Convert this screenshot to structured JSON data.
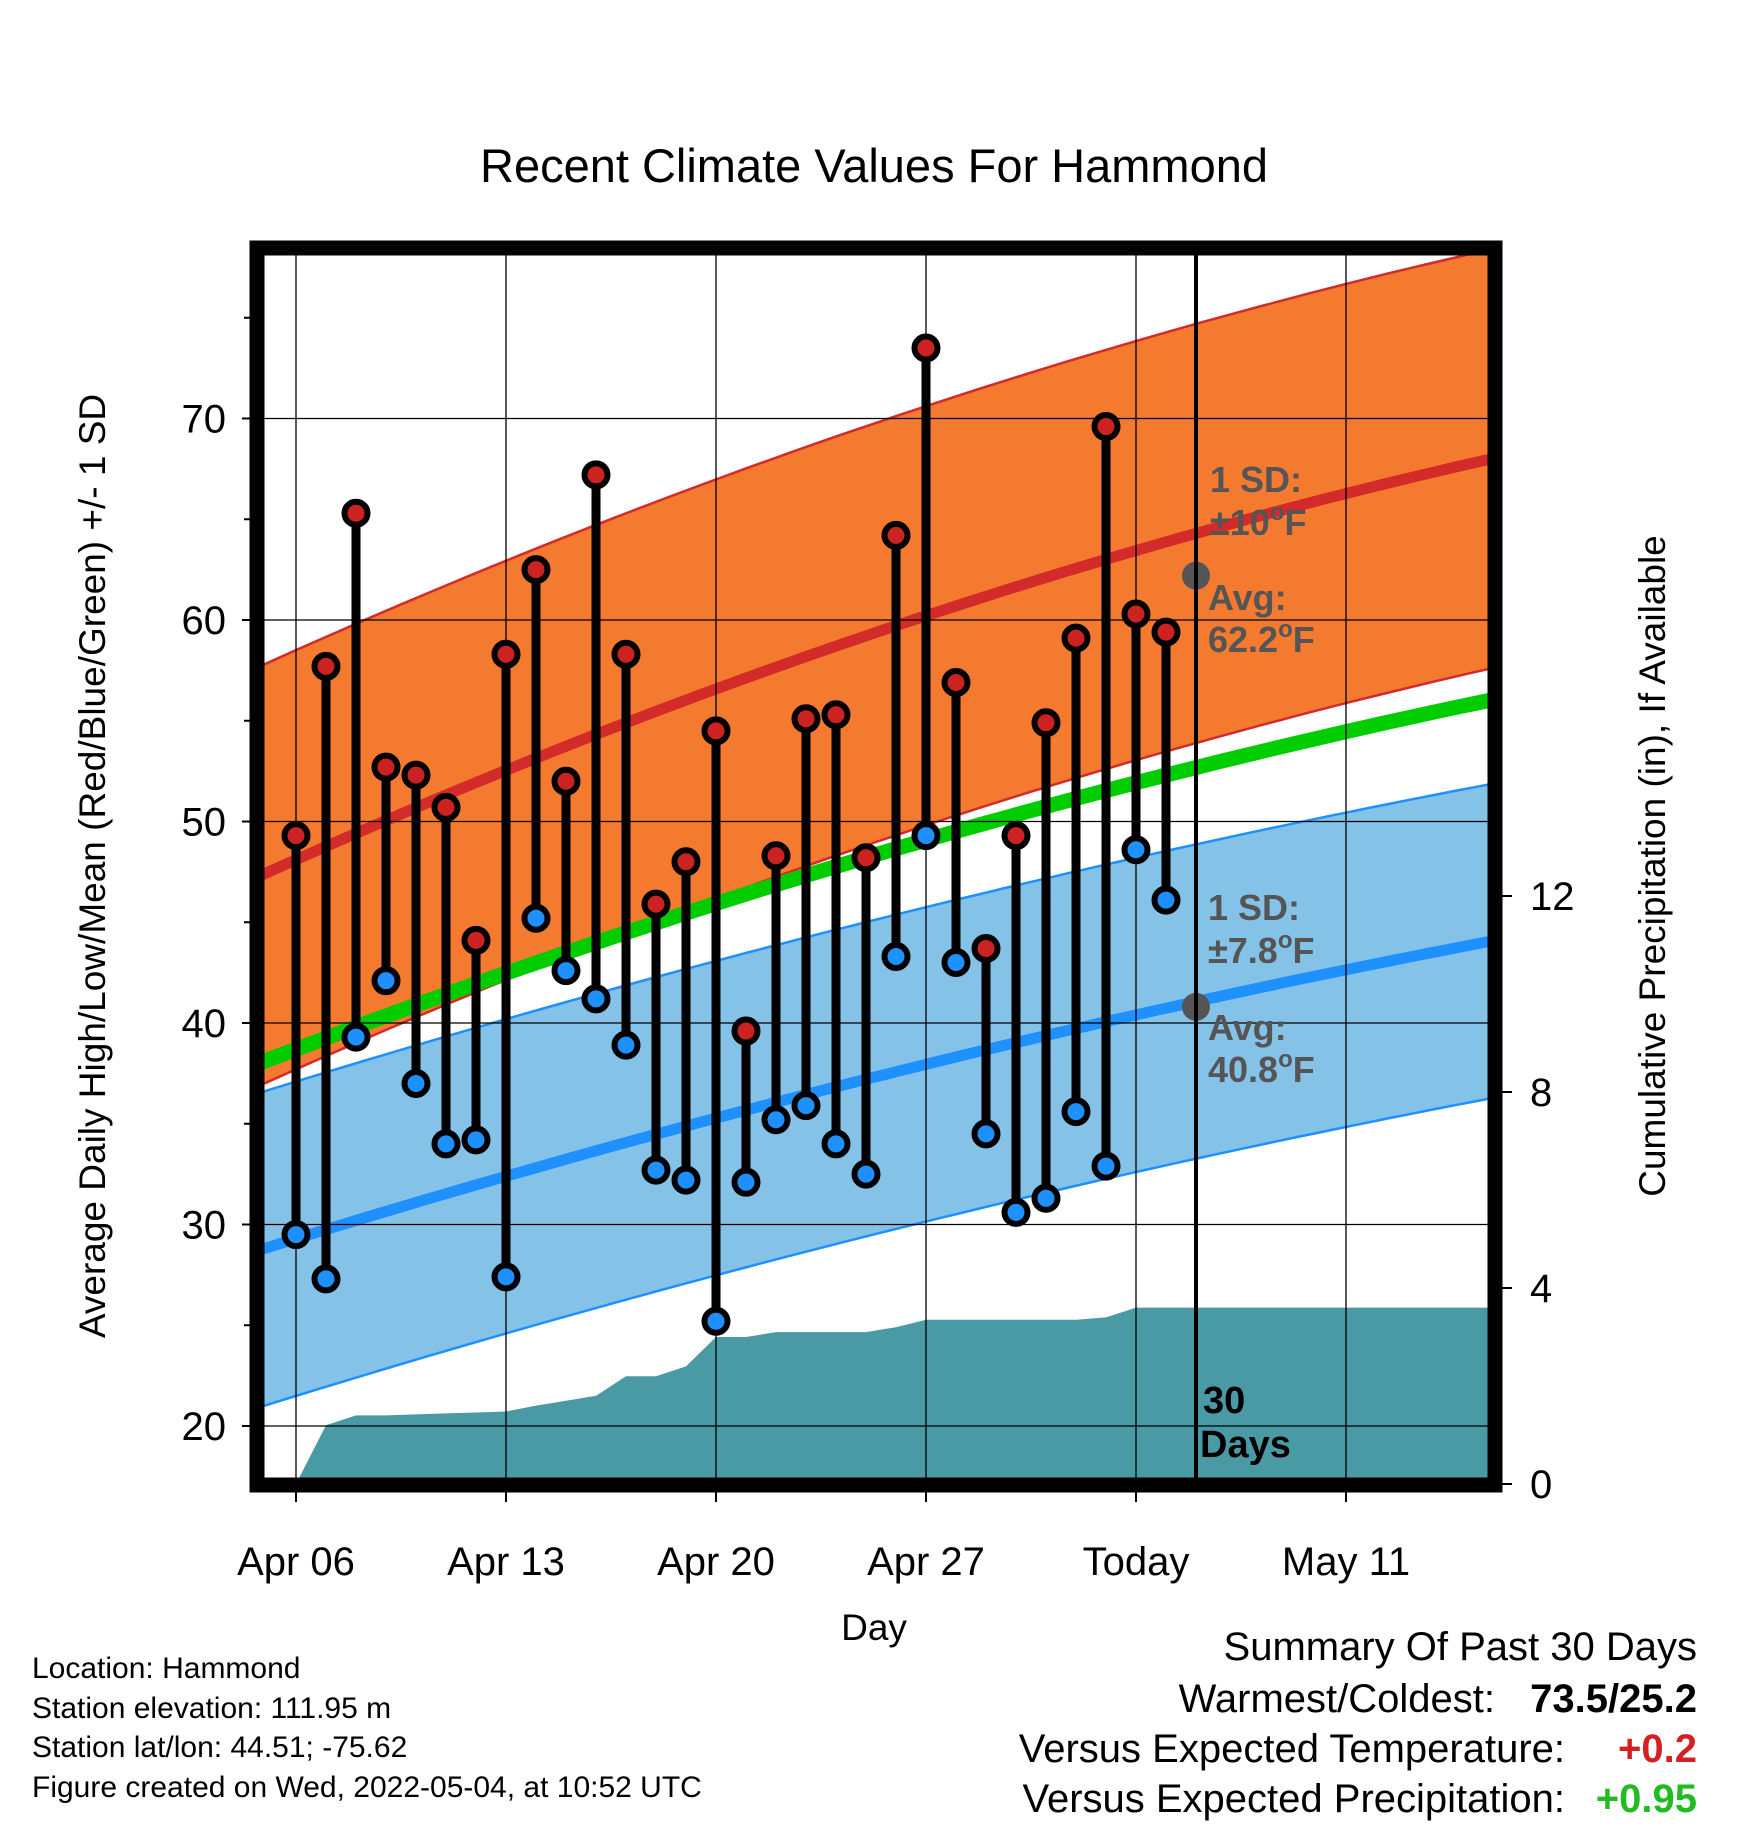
{
  "chart_data": {
    "type": "line",
    "title": "Recent Climate Values For Hammond",
    "xlabel": "Day",
    "ylabel": "Average Daily High/Low/Mean (Red/Blue/Green) +/- 1 SD",
    "ylabel_right": "Cumulative Precipitation (in), If Available",
    "x_ticks": [
      "Apr 06",
      "Apr 13",
      "Apr 20",
      "Apr 27",
      "Today",
      "May 11"
    ],
    "y_ticks": [
      20,
      30,
      40,
      50,
      60,
      70
    ],
    "y_right_ticks": [
      0,
      4,
      8,
      12
    ],
    "today_label": "30 Days",
    "highs": [
      49.3,
      57.7,
      65.3,
      52.7,
      52.3,
      50.7,
      44.1,
      58.3,
      62.5,
      52.0,
      67.2,
      58.3,
      45.9,
      48.0,
      54.5,
      39.6,
      48.3,
      55.1,
      55.3,
      48.2,
      64.2,
      73.5,
      56.9,
      43.7,
      49.3,
      54.9,
      59.1,
      69.6,
      60.3,
      59.4
    ],
    "lows": [
      29.5,
      27.3,
      39.3,
      42.1,
      37.0,
      34.0,
      34.2,
      27.4,
      45.2,
      42.6,
      41.2,
      38.9,
      32.7,
      32.2,
      25.2,
      32.1,
      35.2,
      35.9,
      34.0,
      32.5,
      43.3,
      49.3,
      43.0,
      34.5,
      30.6,
      31.3,
      35.6,
      32.9,
      48.6,
      46.1
    ],
    "avg_high_today": "62.2",
    "avg_low_today": "40.8",
    "sd_high": "10",
    "sd_low": "7.8",
    "precip_cumulative_in": [
      0.0,
      1.2,
      1.4,
      1.4,
      1.42,
      1.44,
      1.46,
      1.48,
      1.6,
      1.7,
      1.8,
      2.2,
      2.2,
      2.4,
      3.0,
      3.0,
      3.1,
      3.1,
      3.1,
      3.1,
      3.2,
      3.35,
      3.35,
      3.35,
      3.35,
      3.35,
      3.35,
      3.4,
      3.6,
      3.6,
      3.6
    ]
  },
  "annotations": {
    "sd_high_line1": "1 SD:",
    "sd_high_line2": "±10",
    "sd_low_line1": "1 SD:",
    "sd_low_line2": "±7.8",
    "avg_high_line1": "Avg:",
    "avg_high_line2": "62.2",
    "avg_low_line1": "Avg:",
    "avg_low_line2": "40.8",
    "deg_unit_o": "o",
    "deg_unit_f": "F",
    "days_line1": "30",
    "days_line2": "Days"
  },
  "station_info": {
    "location": "Location: Hammond",
    "elevation": "Station elevation: 111.95 m",
    "latlon": "Station lat/lon: 44.51; -75.62",
    "created": "Figure created on Wed, 2022-05-04, at 10:52 UTC"
  },
  "summary": {
    "title": "Summary Of Past 30 Days",
    "warm_cold_label": "Warmest/Coldest:",
    "warm_cold_value": "73.5/25.2",
    "temp_label": "Versus Expected Temperature:",
    "temp_value": "+0.2",
    "precip_label": "Versus Expected Precipitation:",
    "precip_value": "+0.95"
  },
  "colors": {
    "high_band": "#f47a30",
    "high_line": "#d32a2a",
    "low_band": "#84c2e8",
    "low_line": "#1e90ff",
    "mean_line": "#00cc00",
    "precip": "#4a9aa5",
    "high_point": "#cc2222",
    "low_point": "#1e90ff",
    "temp_value": "#d42020",
    "precip_value": "#22bb22"
  }
}
